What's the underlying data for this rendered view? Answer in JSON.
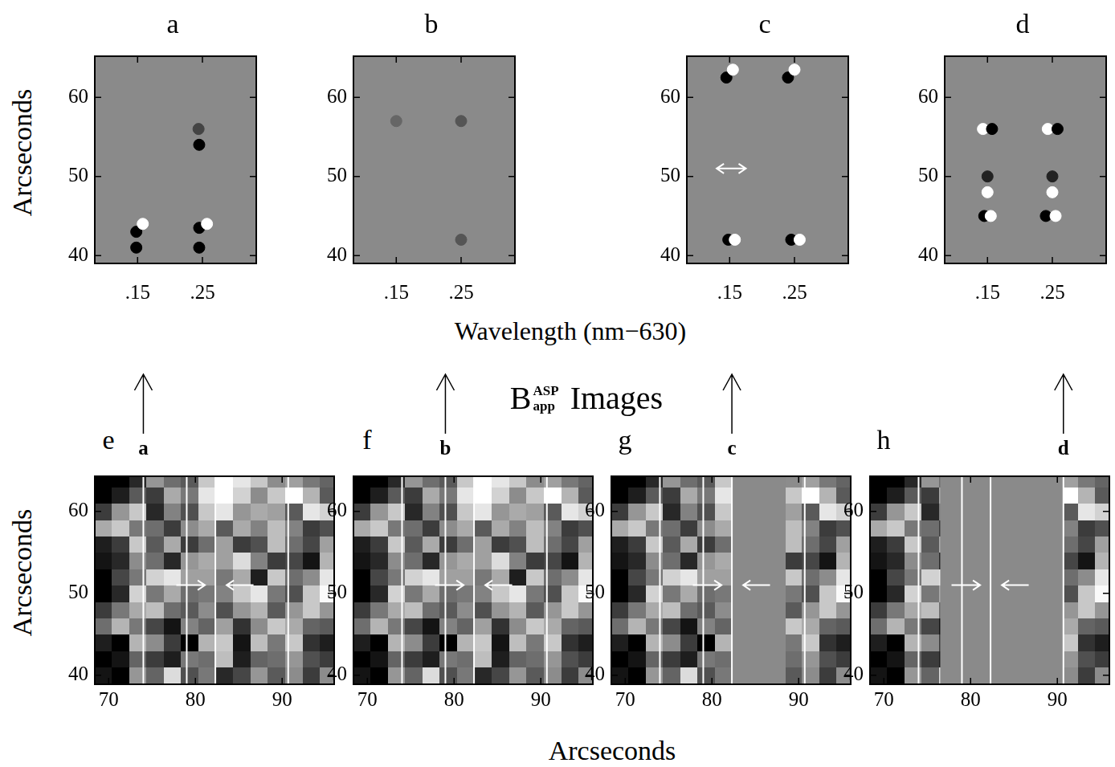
{
  "ylabel": "Arcseconds",
  "top_xlabel": "Wavelength (nm−630)",
  "bottom_xlabel": "Arcseconds",
  "middle_title": {
    "symbol": "B",
    "superscript": "ASP",
    "subscript": "app",
    "text": "Images"
  },
  "map": {
    "x": [
      69.4,
      71.4,
      73.4,
      75.4,
      77.4,
      79.4,
      81.4,
      83.4,
      85.4,
      87.4,
      89.4,
      91.4,
      93.4,
      95.4
    ],
    "y": [
      63.9,
      61.9,
      59.9,
      57.9,
      55.9,
      53.9,
      51.9,
      49.9,
      47.9,
      45.9,
      43.9,
      41.9,
      39.9
    ],
    "cells": [
      [
        0,
        0,
        40,
        150,
        110,
        90,
        200,
        255,
        230,
        200,
        140,
        160,
        120,
        100
      ],
      [
        0,
        30,
        90,
        60,
        170,
        120,
        230,
        255,
        210,
        140,
        200,
        255,
        180,
        90
      ],
      [
        60,
        150,
        200,
        40,
        130,
        80,
        200,
        230,
        150,
        170,
        160,
        90,
        230,
        210
      ],
      [
        170,
        200,
        120,
        110,
        60,
        140,
        170,
        90,
        170,
        130,
        190,
        130,
        60,
        80
      ],
      [
        30,
        60,
        200,
        90,
        170,
        60,
        110,
        160,
        60,
        80,
        190,
        110,
        70,
        160
      ],
      [
        20,
        40,
        140,
        110,
        40,
        150,
        170,
        160,
        220,
        130,
        60,
        70,
        20,
        180
      ],
      [
        0,
        70,
        120,
        210,
        230,
        160,
        160,
        120,
        170,
        30,
        200,
        110,
        140,
        230
      ],
      [
        0,
        40,
        210,
        120,
        170,
        110,
        120,
        130,
        200,
        230,
        120,
        80,
        200,
        250
      ],
      [
        60,
        120,
        170,
        190,
        110,
        90,
        140,
        80,
        150,
        180,
        90,
        150,
        200,
        150
      ],
      [
        110,
        180,
        120,
        70,
        20,
        130,
        100,
        160,
        50,
        140,
        200,
        170,
        100,
        90
      ],
      [
        30,
        0,
        180,
        140,
        60,
        0,
        180,
        200,
        20,
        190,
        120,
        200,
        50,
        30
      ],
      [
        0,
        20,
        100,
        60,
        30,
        120,
        110,
        190,
        30,
        100,
        110,
        150,
        80,
        60
      ],
      [
        20,
        0,
        150,
        100,
        220,
        80,
        120,
        40,
        70,
        150,
        90,
        140,
        60,
        140
      ]
    ]
  },
  "chart_data": [
    {
      "type": "scatter",
      "title": "a",
      "xlim": [
        0.084,
        0.333
      ],
      "ylim": [
        39,
        65.2
      ],
      "xticks": [
        {
          "value": 0.15,
          "label": ".15"
        },
        {
          "value": 0.25,
          "label": ".25"
        }
      ],
      "yticks": [
        40,
        50,
        60
      ],
      "x": [
        0.148,
        0.158,
        0.148,
        0.245,
        0.257,
        0.245,
        0.245,
        0.244
      ],
      "y": [
        43,
        44,
        41,
        43.5,
        44,
        41,
        54,
        56
      ],
      "colors": [
        "#000000",
        "#ffffff",
        "#000000",
        "#000000",
        "#ffffff",
        "#000000",
        "#000000",
        "#444444"
      ],
      "arrows": []
    },
    {
      "type": "scatter",
      "title": "b",
      "xlim": [
        0.084,
        0.333
      ],
      "ylim": [
        39,
        65.2
      ],
      "xticks": [
        {
          "value": 0.15,
          "label": ".15"
        },
        {
          "value": 0.25,
          "label": ".25"
        }
      ],
      "yticks": [
        40,
        50,
        60
      ],
      "x": [
        0.25,
        0.25,
        0.15
      ],
      "y": [
        57,
        42,
        57
      ],
      "colors": [
        "#555555",
        "#555555",
        "#666666"
      ],
      "arrows": []
    },
    {
      "type": "scatter",
      "title": "c",
      "xlim": [
        0.084,
        0.333
      ],
      "ylim": [
        39,
        65.2
      ],
      "xticks": [
        {
          "value": 0.15,
          "label": ".15"
        },
        {
          "value": 0.25,
          "label": ".25"
        }
      ],
      "yticks": [
        40,
        50,
        60
      ],
      "x": [
        0.145,
        0.155,
        0.24,
        0.25,
        0.148,
        0.158,
        0.245,
        0.258
      ],
      "y": [
        62.5,
        63.5,
        62.5,
        63.5,
        42,
        42,
        42,
        42
      ],
      "colors": [
        "#000000",
        "#ffffff",
        "#000000",
        "#ffffff",
        "#000000",
        "#ffffff",
        "#000000",
        "#ffffff"
      ],
      "arrows": [
        {
          "from": [
            0.13,
            51
          ],
          "to": [
            0.175,
            51
          ],
          "double": true
        }
      ]
    },
    {
      "type": "scatter",
      "title": "d",
      "xlim": [
        0.084,
        0.333
      ],
      "ylim": [
        39,
        65.2
      ],
      "xticks": [
        {
          "value": 0.15,
          "label": ".15"
        },
        {
          "value": 0.25,
          "label": ".25"
        }
      ],
      "yticks": [
        40,
        50,
        60
      ],
      "x": [
        0.143,
        0.157,
        0.243,
        0.258,
        0.15,
        0.25,
        0.145,
        0.155,
        0.24,
        0.255,
        0.15,
        0.25
      ],
      "y": [
        56,
        56,
        56,
        56,
        50,
        50,
        45,
        45,
        45,
        45,
        48,
        48
      ],
      "colors": [
        "#ffffff",
        "#000000",
        "#ffffff",
        "#000000",
        "#222222",
        "#222222",
        "#000000",
        "#ffffff",
        "#000000",
        "#ffffff",
        "#ffffff",
        "#ffffff"
      ],
      "arrows": []
    },
    {
      "type": "heatmap",
      "title": "e",
      "xlim": [
        68.4,
        96.0
      ],
      "ylim": [
        38.9,
        64.3
      ],
      "xticks": [
        70,
        80,
        90
      ],
      "yticks": [
        40,
        50,
        60
      ],
      "lines": [
        74.0,
        79.0,
        82.3,
        90.7
      ],
      "slit": {
        "label": "a",
        "x": 74.0
      },
      "masked": [],
      "arrows": [
        {
          "from": [
            77.8,
            51
          ],
          "to": [
            81.1,
            51
          ]
        },
        {
          "from": [
            86.7,
            51
          ],
          "to": [
            83.6,
            51
          ]
        }
      ]
    },
    {
      "type": "heatmap",
      "title": "f",
      "xlim": [
        68.4,
        96.0
      ],
      "ylim": [
        38.9,
        64.3
      ],
      "xticks": [
        70,
        80,
        90
      ],
      "yticks": [
        40,
        50,
        60
      ],
      "lines": [
        74.0,
        79.0,
        82.3,
        90.7
      ],
      "slit": {
        "label": "b",
        "x": 79.0
      },
      "masked": [],
      "arrows": [
        {
          "from": [
            77.8,
            51
          ],
          "to": [
            81.1,
            51
          ]
        },
        {
          "from": [
            86.7,
            51
          ],
          "to": [
            83.6,
            51
          ]
        }
      ]
    },
    {
      "type": "heatmap",
      "title": "g",
      "xlim": [
        68.4,
        96.0
      ],
      "ylim": [
        38.9,
        64.3
      ],
      "xticks": [
        70,
        80,
        90
      ],
      "yticks": [
        40,
        50,
        60
      ],
      "lines": [
        74.0,
        79.0,
        82.3,
        90.7
      ],
      "slit": {
        "label": "c",
        "x": 82.3
      },
      "masked": [
        [
          82.3,
          88.5
        ]
      ],
      "arrows": [
        {
          "from": [
            77.8,
            51
          ],
          "to": [
            81.1,
            51
          ]
        },
        {
          "from": [
            86.7,
            51
          ],
          "to": [
            83.6,
            51
          ]
        }
      ]
    },
    {
      "type": "heatmap",
      "title": "h",
      "xlim": [
        68.4,
        96.0
      ],
      "ylim": [
        38.9,
        64.3
      ],
      "xticks": [
        70,
        80,
        90
      ],
      "yticks": [
        40,
        50,
        60
      ],
      "lines": [
        74.0,
        79.0,
        82.3,
        90.7
      ],
      "slit": {
        "label": "d",
        "x": 90.7
      },
      "masked": [
        [
          76.5,
          90.7
        ]
      ],
      "arrows": [
        {
          "from": [
            77.8,
            51
          ],
          "to": [
            81.1,
            51
          ]
        },
        {
          "from": [
            86.7,
            51
          ],
          "to": [
            83.6,
            51
          ]
        }
      ]
    }
  ]
}
